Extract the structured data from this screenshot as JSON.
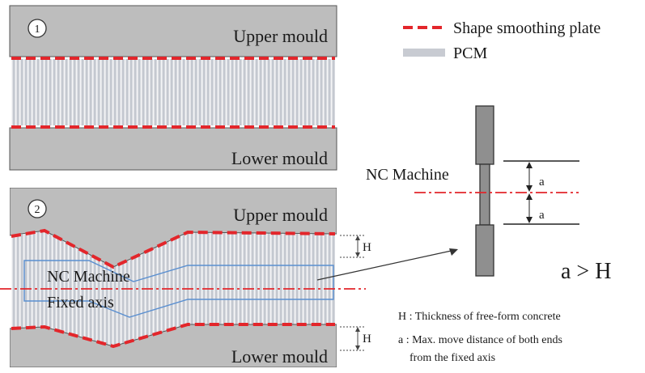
{
  "legend": {
    "plate_label": "Shape smoothing plate",
    "pcm_label": "PCM"
  },
  "panel1": {
    "step": "1",
    "upper": "Upper mould",
    "lower": "Lower mould"
  },
  "panel2": {
    "step": "2",
    "upper": "Upper mould",
    "lower": "Lower mould",
    "nc_machine": "NC Machine",
    "fixed_axis": "Fixed axis",
    "h_top": "H",
    "h_bottom": "H"
  },
  "machine": {
    "label": "NC Machine",
    "a_top": "a",
    "a_bottom": "a",
    "relation": "a > H"
  },
  "notes": {
    "line1": "H : Thickness of free-form concrete",
    "line2": "a : Max. move distance of both ends",
    "line3": "from the fixed axis"
  },
  "colors": {
    "mould": "#bdbdbd",
    "plate": "#e3262b",
    "pcm": "#c8cbd2",
    "frame": "#5a8fd0"
  }
}
